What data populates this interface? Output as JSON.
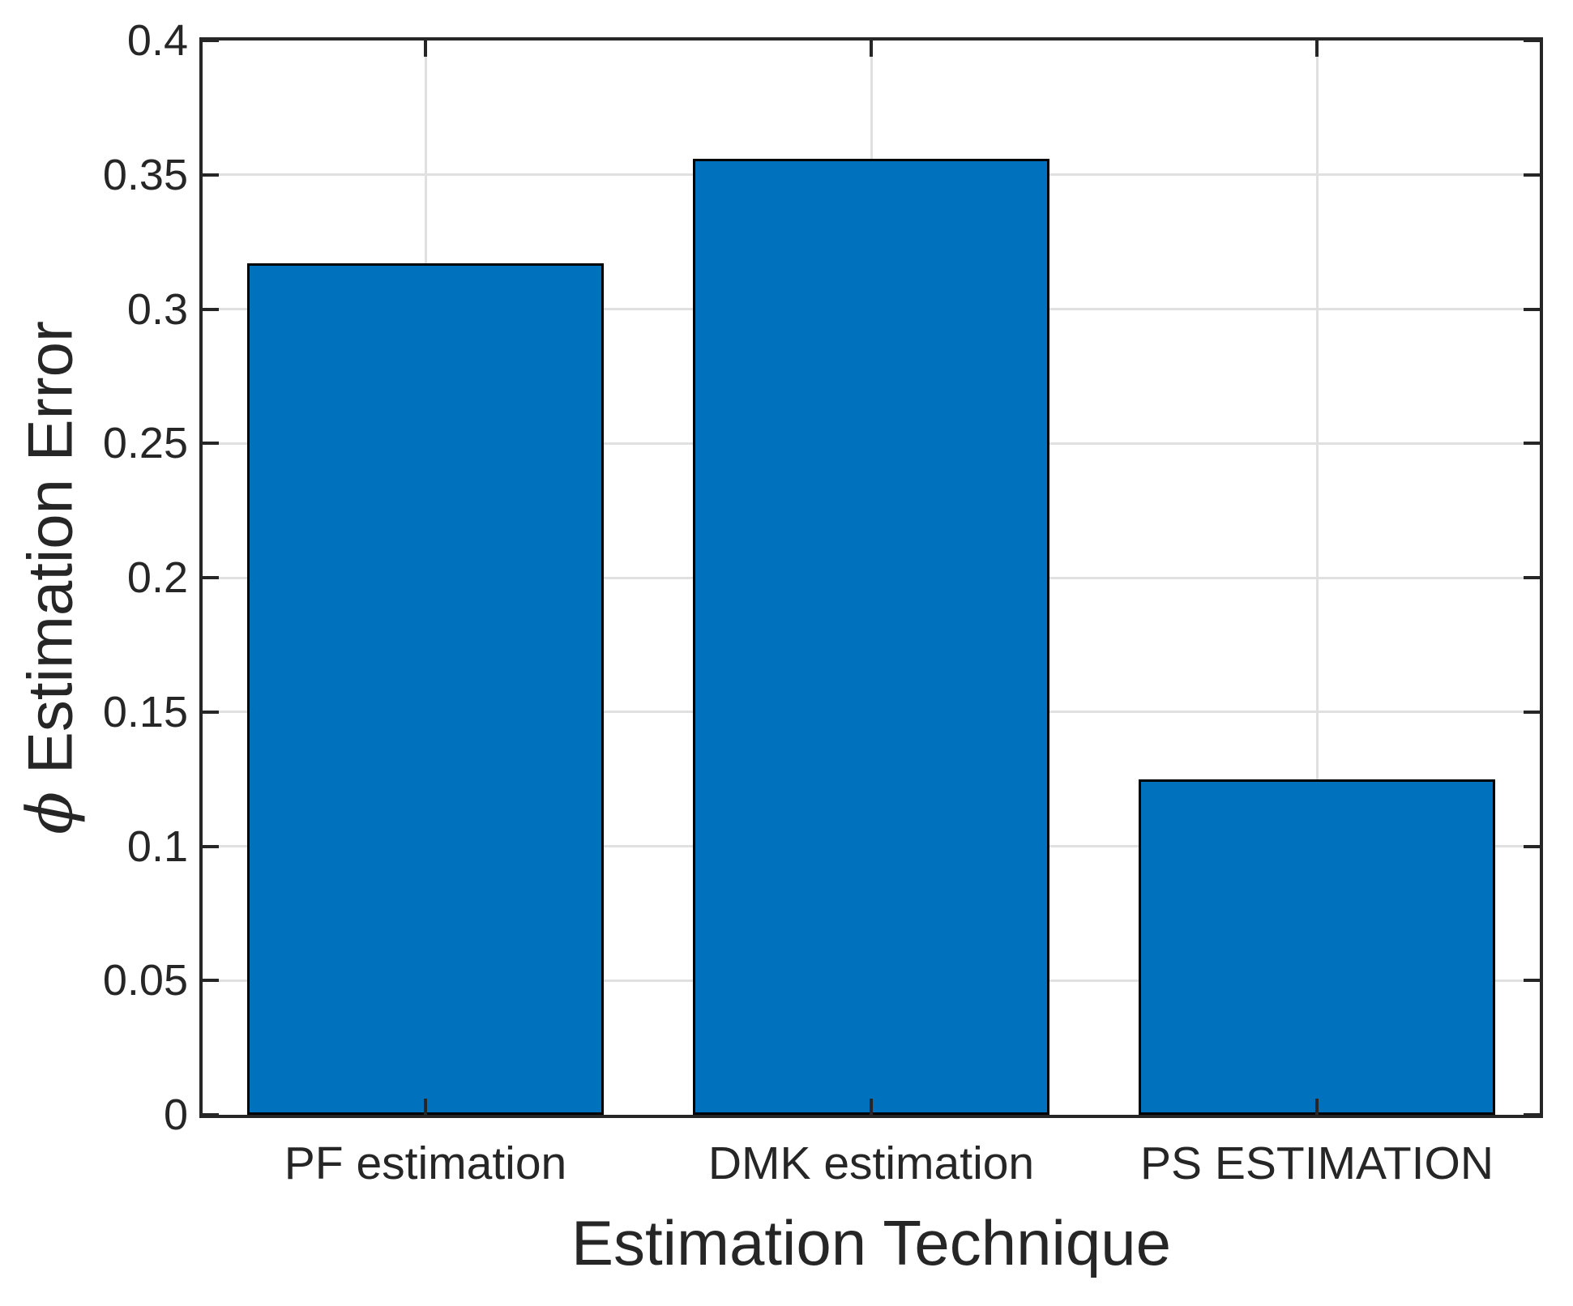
{
  "chart_data": {
    "type": "bar",
    "title": "",
    "categories": [
      "PF estimation",
      "DMK estimation",
      "PS ESTIMATION"
    ],
    "values": [
      0.317,
      0.356,
      0.125
    ],
    "xlabel": "Estimation Technique",
    "ylabel": "ϕ Estimation Error",
    "ylabel_symbol": "ϕ",
    "ylabel_text": " Estimation Error",
    "ylim": [
      0,
      0.4
    ],
    "ytick_step": 0.05,
    "ytick_labels": [
      "0",
      "0.05",
      "0.1",
      "0.15",
      "0.2",
      "0.25",
      "0.3",
      "0.35",
      "0.4"
    ],
    "grid": true,
    "legend": null,
    "bar_width_fraction": 0.8,
    "colors": {
      "bar_fill": "#0072BD",
      "bar_edge": "#000000",
      "axis": "#262626",
      "grid": "#E0E0E0",
      "text": "#262626",
      "background": "#FFFFFF"
    }
  }
}
